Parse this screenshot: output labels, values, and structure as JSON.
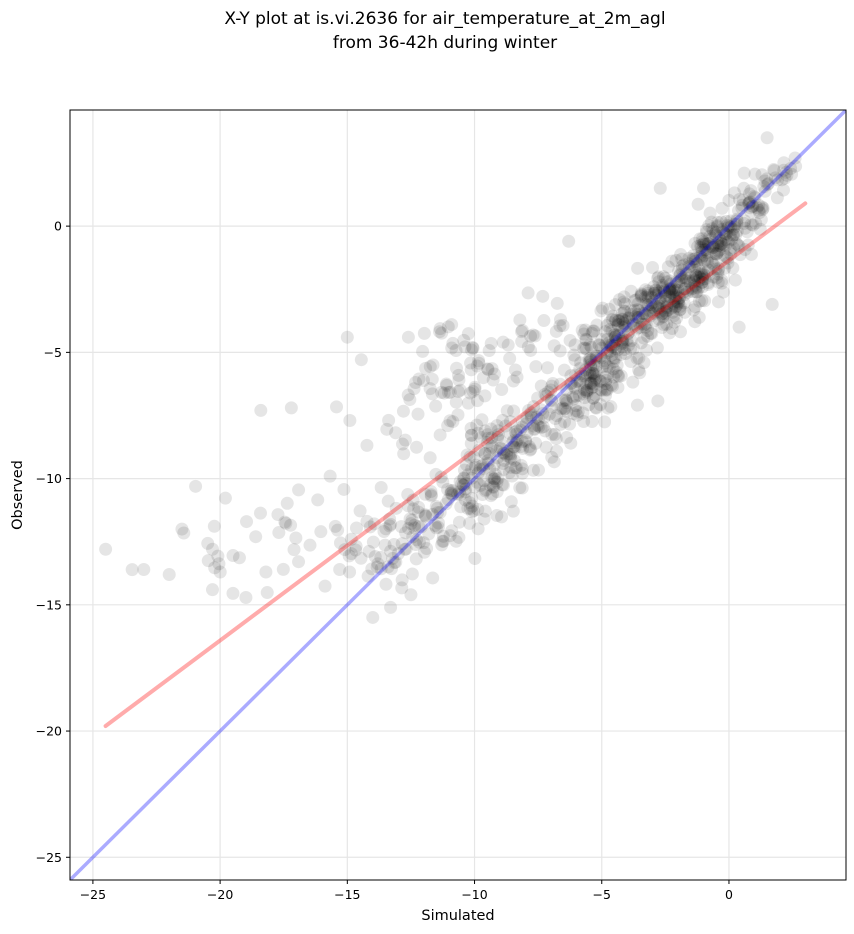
{
  "chart_data": {
    "type": "scatter",
    "title_line1": "X-Y plot at is.vi.2636 for air_temperature_at_2m_agl",
    "title_line2": "from 36-42h during winter",
    "xlabel": "Simulated",
    "ylabel": "Observed",
    "xlim": [
      -25.9,
      4.6
    ],
    "ylim": [
      -25.9,
      4.6
    ],
    "x_ticks": [
      -25,
      -20,
      -15,
      -10,
      -5,
      0
    ],
    "y_ticks": [
      -25,
      -20,
      -15,
      -10,
      -5,
      0
    ],
    "x_tick_labels": [
      "−25",
      "−20",
      "−15",
      "−10",
      "−5",
      "0"
    ],
    "y_tick_labels": [
      "−25",
      "−20",
      "−15",
      "−10",
      "−5",
      "0"
    ],
    "grid": true,
    "point_color": "#000000",
    "identity_line": {
      "x": [
        -25.9,
        4.6
      ],
      "y": [
        -25.9,
        4.6
      ],
      "color": "#0000ff"
    },
    "fit_line": {
      "x": [
        -24.5,
        3.0
      ],
      "y": [
        -19.8,
        0.9
      ],
      "color": "#ff0000"
    },
    "clusters": [
      {
        "cx": -2.5,
        "cy": -3.0,
        "sx": 1.4,
        "sy": 1.0,
        "n": 260,
        "r": 0.78
      },
      {
        "cx": -0.5,
        "cy": -0.6,
        "sx": 1.0,
        "sy": 0.9,
        "n": 140,
        "r": 0.8
      },
      {
        "cx": 1.4,
        "cy": 1.5,
        "sx": 0.6,
        "sy": 0.7,
        "n": 30,
        "r": 0.6
      },
      {
        "cx": -4.8,
        "cy": -5.3,
        "sx": 1.0,
        "sy": 1.2,
        "n": 150,
        "r": 0.7
      },
      {
        "cx": -6.5,
        "cy": -7.0,
        "sx": 1.3,
        "sy": 1.3,
        "n": 90,
        "r": 0.6
      },
      {
        "cx": -9.0,
        "cy": -9.3,
        "sx": 0.9,
        "sy": 1.2,
        "n": 130,
        "r": 0.6
      },
      {
        "cx": -10.5,
        "cy": -6.2,
        "sx": 1.2,
        "sy": 1.0,
        "n": 50,
        "r": 0.3
      },
      {
        "cx": -8.0,
        "cy": -4.5,
        "sx": 1.3,
        "sy": 0.8,
        "n": 35,
        "r": 0.3
      },
      {
        "cx": -11.2,
        "cy": -11.5,
        "sx": 1.0,
        "sy": 0.8,
        "n": 70,
        "r": 0.4
      },
      {
        "cx": -13.5,
        "cy": -12.8,
        "sx": 1.0,
        "sy": 1.0,
        "n": 55,
        "r": 0.5
      },
      {
        "cx": -16.5,
        "cy": -11.8,
        "sx": 1.2,
        "sy": 0.9,
        "n": 18,
        "r": 0.2
      },
      {
        "cx": -19.5,
        "cy": -12.5,
        "sx": 1.3,
        "sy": 1.0,
        "n": 20,
        "r": 0.2
      },
      {
        "cx": -12.0,
        "cy": -8.0,
        "sx": 1.8,
        "sy": 1.8,
        "n": 30,
        "r": 0.2
      }
    ],
    "outliers": [
      [
        -24.5,
        -12.8
      ],
      [
        -23.0,
        -13.6
      ],
      [
        -22.0,
        -13.8
      ],
      [
        -21.5,
        -12.0
      ],
      [
        -20.3,
        -14.4
      ],
      [
        -18.4,
        -7.3
      ],
      [
        -17.2,
        -7.2
      ],
      [
        -15.0,
        -4.4
      ],
      [
        -14.9,
        -7.7
      ],
      [
        -12.6,
        -4.4
      ],
      [
        -10.9,
        -3.9
      ],
      [
        -6.3,
        -0.6
      ],
      [
        -2.7,
        1.5
      ],
      [
        -1.0,
        1.5
      ],
      [
        0.6,
        2.1
      ],
      [
        1.5,
        3.5
      ],
      [
        2.6,
        2.7
      ],
      [
        2.2,
        1.9
      ],
      [
        1.7,
        -3.1
      ],
      [
        0.4,
        -4.0
      ],
      [
        -14.0,
        -15.5
      ],
      [
        -13.3,
        -15.1
      ],
      [
        -12.5,
        -14.6
      ],
      [
        -15.3,
        -13.6
      ],
      [
        -18.2,
        -13.7
      ]
    ]
  }
}
